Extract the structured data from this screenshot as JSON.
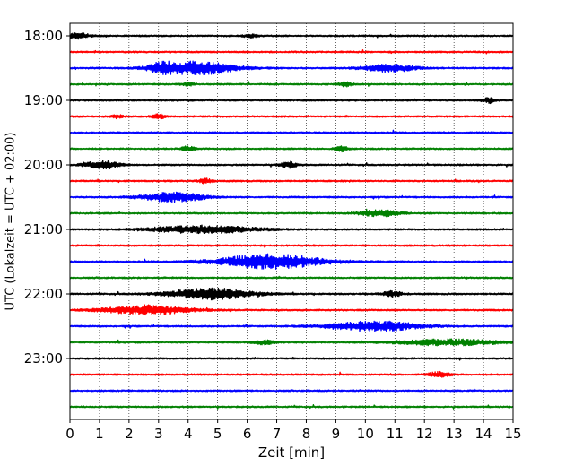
{
  "chart_data": {
    "type": "line",
    "title": "",
    "xlabel": "Zeit  [min]",
    "ylabel": "UTC (Lokalzeit = UTC + 02:00)",
    "xlim": [
      0,
      15
    ],
    "x_ticks": [
      "0",
      "1",
      "2",
      "3",
      "4",
      "5",
      "6",
      "7",
      "8",
      "9",
      "10",
      "11",
      "12",
      "13",
      "14",
      "15"
    ],
    "y_tick_labels": [
      "18:00",
      "19:00",
      "20:00",
      "21:00",
      "22:00",
      "23:00"
    ],
    "grid": "vertical dotted",
    "trace_colors": [
      "#000000",
      "#ff0000",
      "#0000ff",
      "#008000"
    ],
    "traces": [
      {
        "start": "18:00",
        "events": [
          {
            "t": 0.3,
            "amp": 0.35,
            "w": 0.5
          },
          {
            "t": 6.1,
            "amp": 0.2,
            "w": 0.3
          }
        ]
      },
      {
        "start": "18:15",
        "events": []
      },
      {
        "start": "18:30",
        "events": [
          {
            "t": 4.3,
            "amp": 0.8,
            "w": 1.8
          },
          {
            "t": 3.1,
            "amp": 0.45,
            "w": 0.6
          },
          {
            "t": 10.8,
            "amp": 0.45,
            "w": 1.2
          }
        ]
      },
      {
        "start": "18:45",
        "events": [
          {
            "t": 9.3,
            "amp": 0.3,
            "w": 0.3
          },
          {
            "t": 4.0,
            "amp": 0.2,
            "w": 0.3
          }
        ]
      },
      {
        "start": "19:00",
        "events": [
          {
            "t": 14.2,
            "amp": 0.3,
            "w": 0.3
          }
        ]
      },
      {
        "start": "19:15",
        "events": [
          {
            "t": 3.0,
            "amp": 0.3,
            "w": 0.3
          },
          {
            "t": 1.6,
            "amp": 0.2,
            "w": 0.3
          }
        ]
      },
      {
        "start": "19:30",
        "events": []
      },
      {
        "start": "19:45",
        "events": [
          {
            "t": 4.0,
            "amp": 0.3,
            "w": 0.3
          },
          {
            "t": 9.2,
            "amp": 0.3,
            "w": 0.3
          }
        ]
      },
      {
        "start": "20:00",
        "events": [
          {
            "t": 1.1,
            "amp": 0.5,
            "w": 0.8
          },
          {
            "t": 7.4,
            "amp": 0.35,
            "w": 0.4
          }
        ]
      },
      {
        "start": "20:15",
        "events": [
          {
            "t": 4.6,
            "amp": 0.3,
            "w": 0.3
          }
        ]
      },
      {
        "start": "20:30",
        "events": [
          {
            "t": 3.5,
            "amp": 0.55,
            "w": 1.5
          }
        ]
      },
      {
        "start": "20:45",
        "events": [
          {
            "t": 10.5,
            "amp": 0.35,
            "w": 1.0
          }
        ]
      },
      {
        "start": "21:00",
        "events": [
          {
            "t": 4.5,
            "amp": 0.45,
            "w": 2.5
          }
        ]
      },
      {
        "start": "21:15",
        "events": []
      },
      {
        "start": "21:30",
        "events": [
          {
            "t": 6.8,
            "amp": 0.9,
            "w": 2.5
          }
        ]
      },
      {
        "start": "21:45",
        "events": []
      },
      {
        "start": "22:00",
        "events": [
          {
            "t": 4.8,
            "amp": 0.65,
            "w": 2.0
          },
          {
            "t": 10.9,
            "amp": 0.3,
            "w": 0.5
          }
        ]
      },
      {
        "start": "22:15",
        "events": [
          {
            "t": 2.6,
            "amp": 0.55,
            "w": 2.0
          }
        ]
      },
      {
        "start": "22:30",
        "events": [
          {
            "t": 10.3,
            "amp": 0.6,
            "w": 2.2
          }
        ]
      },
      {
        "start": "22:45",
        "events": [
          {
            "t": 12.8,
            "amp": 0.35,
            "w": 2.5
          },
          {
            "t": 6.6,
            "amp": 0.25,
            "w": 0.5
          }
        ]
      },
      {
        "start": "23:00",
        "events": []
      },
      {
        "start": "23:15",
        "events": [
          {
            "t": 12.5,
            "amp": 0.3,
            "w": 0.5
          }
        ]
      },
      {
        "start": "23:30",
        "events": []
      },
      {
        "start": "23:45",
        "events": []
      }
    ]
  }
}
